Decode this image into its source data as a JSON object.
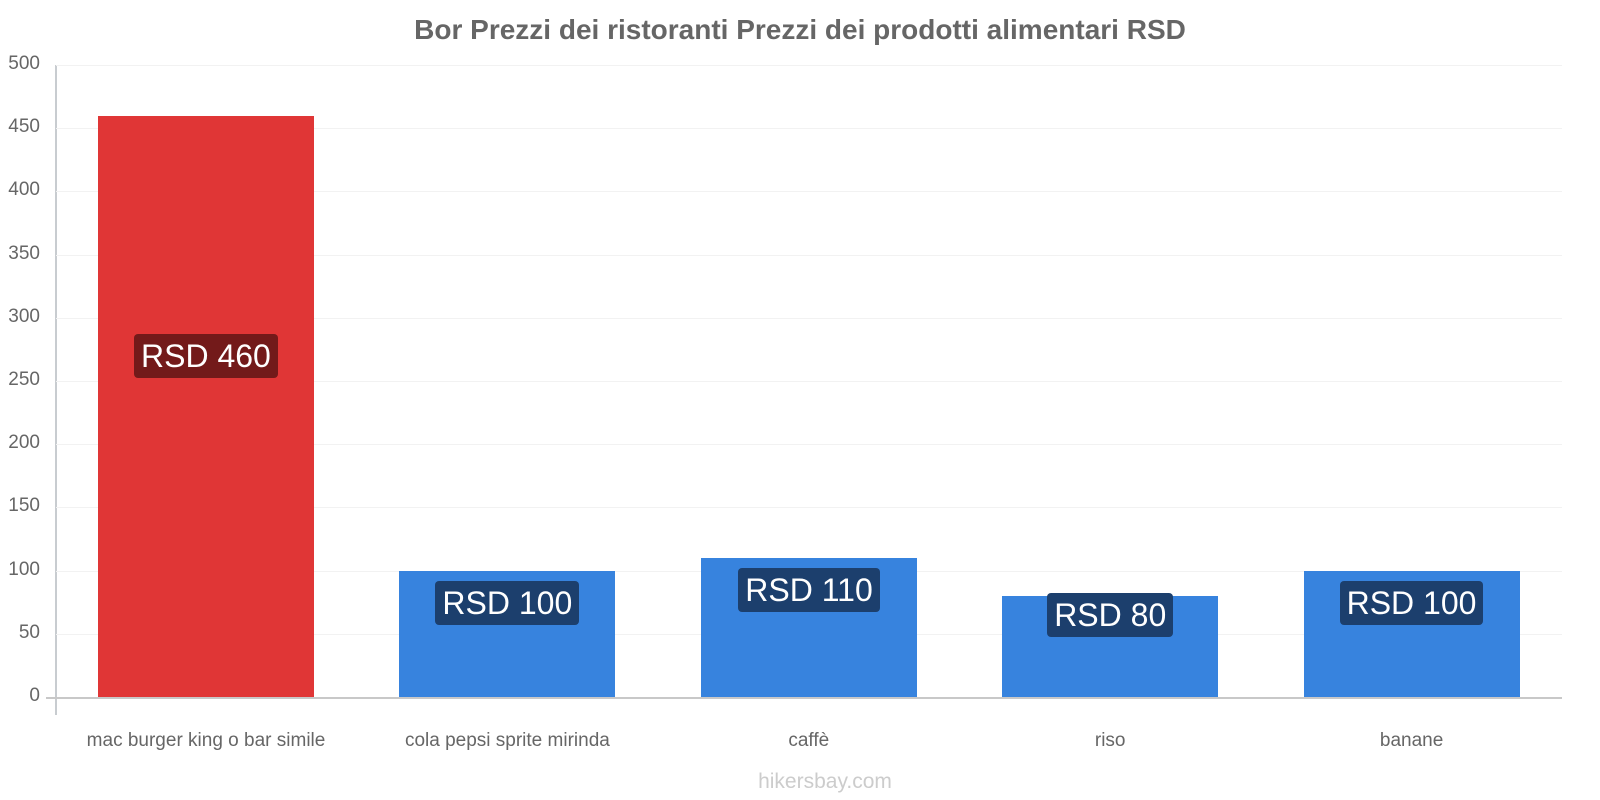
{
  "title": "Bor Prezzi dei ristoranti Prezzi dei prodotti alimentari RSD",
  "watermark": "hikersbay.com",
  "colors": {
    "highlight_bar": "#e03636",
    "normal_bar": "#3783de",
    "highlight_label_bg": "#731a1a",
    "normal_label_bg": "#1c3f6d"
  },
  "y_ticks": [
    "0",
    "50",
    "100",
    "150",
    "200",
    "250",
    "300",
    "350",
    "400",
    "450",
    "500"
  ],
  "bars": [
    {
      "category": "mac burger king o bar simile",
      "value": 460,
      "label": "RSD 460"
    },
    {
      "category": "cola pepsi sprite mirinda",
      "value": 100,
      "label": "RSD 100"
    },
    {
      "category": "caffè",
      "value": 110,
      "label": "RSD 110"
    },
    {
      "category": "riso",
      "value": 80,
      "label": "RSD 80"
    },
    {
      "category": "banane",
      "value": 100,
      "label": "RSD 100"
    }
  ],
  "chart_data": {
    "type": "bar",
    "title": "Bor Prezzi dei ristoranti Prezzi dei prodotti alimentari RSD",
    "categories": [
      "mac burger king o bar simile",
      "cola pepsi sprite mirinda",
      "caffè",
      "riso",
      "banane"
    ],
    "values": [
      460,
      100,
      110,
      80,
      100
    ],
    "data_labels": [
      "RSD 460",
      "RSD 100",
      "RSD 110",
      "RSD 80",
      "RSD 100"
    ],
    "xlabel": "",
    "ylabel": "",
    "ylim": [
      0,
      500
    ],
    "yticks": [
      0,
      50,
      100,
      150,
      200,
      250,
      300,
      350,
      400,
      450,
      500
    ],
    "grid": true,
    "legend": null,
    "highlighted_category": "mac burger king o bar simile"
  }
}
